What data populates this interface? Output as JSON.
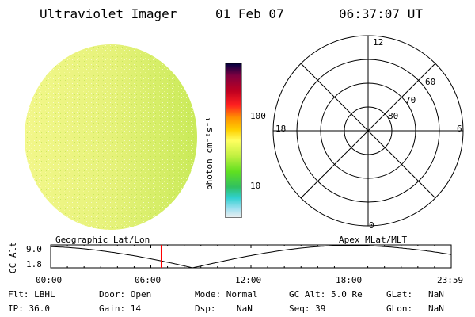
{
  "header": {
    "instrument": "Ultraviolet Imager",
    "date": "01 Feb 07",
    "time": "06:37:07 UT"
  },
  "colorbar": {
    "unit_label": "photon cm⁻²s⁻¹",
    "ticks": [
      "100",
      "10"
    ]
  },
  "polar_plot": {
    "mlt_labels": {
      "top": "12",
      "left": "18",
      "right": "6",
      "bottom": "0"
    },
    "lat_labels": [
      "60",
      "70",
      "80"
    ]
  },
  "strip_chart": {
    "left_title": "Geographic Lat/Lon",
    "right_title": "Apex MLat/MLT",
    "y_axis_label": "GC Alt",
    "y_ticks": [
      "9.0",
      "1.8"
    ],
    "x_ticks": [
      "00:00",
      "06:00",
      "12:00",
      "18:00",
      "23:59"
    ],
    "current_time_hours": 6.62
  },
  "info": {
    "row1": [
      {
        "key": "Flt:",
        "value": "LBHL"
      },
      {
        "key": "Door:",
        "value": "Open"
      },
      {
        "key": "Mode:",
        "value": "Normal"
      },
      {
        "key": "GC Alt:",
        "value": "5.0 Re"
      },
      {
        "key": "GLat:",
        "value": "NaN"
      }
    ],
    "row2": [
      {
        "key": "IP:",
        "value": "36.0"
      },
      {
        "key": "Gain:",
        "value": "14"
      },
      {
        "key": "Dsp:",
        "value": "NaN"
      },
      {
        "key": "Seq:",
        "value": "39"
      },
      {
        "key": "GLon:",
        "value": "NaN"
      }
    ]
  },
  "colors": {
    "image_base": "#e0f070",
    "marker": "#ff0000"
  }
}
